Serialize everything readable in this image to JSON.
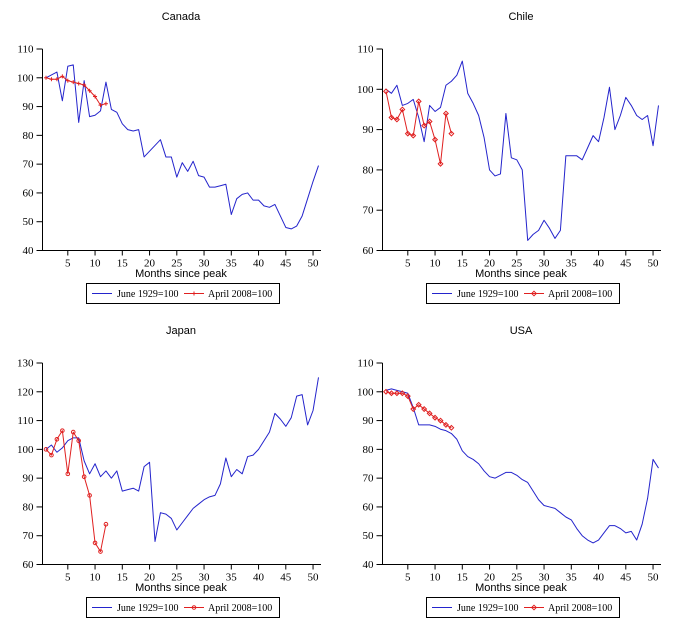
{
  "figure": {
    "background": "#ffffff",
    "blue_color": "#2424cc",
    "red_color": "#e02020",
    "axis_color": "#000000",
    "legend_border_color": "#000000"
  },
  "chart_data": [
    {
      "type": "line",
      "title": "Canada",
      "xlabel": "Months since peak",
      "ylim": [
        40,
        110
      ],
      "yticks": [
        40,
        50,
        60,
        70,
        80,
        90,
        100,
        110
      ],
      "xticks": [
        5,
        10,
        15,
        20,
        25,
        30,
        35,
        40,
        45,
        50
      ],
      "xlim": [
        1,
        51
      ],
      "grid": false,
      "legend_position": "bottom",
      "series": [
        {
          "name": "June 1929=100",
          "color": "#2424cc",
          "marker": "none",
          "x_start": 1,
          "values": [
            100,
            101,
            102,
            92,
            104,
            104.5,
            84.5,
            99,
            86.5,
            87,
            88.5,
            98.5,
            89,
            88,
            84,
            82,
            81.5,
            82,
            72.5,
            74.5,
            76.5,
            78.5,
            72.5,
            72.5,
            65.5,
            70.5,
            67.5,
            71,
            66,
            65.5,
            62,
            62,
            62.5,
            63,
            52.5,
            58,
            59.5,
            60,
            57.5,
            57.5,
            55.5,
            55,
            56,
            52,
            48,
            47.5,
            48.5,
            52,
            58,
            64,
            69.5
          ]
        },
        {
          "name": "April 2008=100",
          "color": "#e02020",
          "marker": "plus",
          "x_start": 1,
          "values": [
            100,
            99.5,
            99.5,
            100.5,
            99,
            98.5,
            98,
            97.5,
            95.5,
            93.5,
            90.5,
            91
          ]
        }
      ]
    },
    {
      "type": "line",
      "title": "Chile",
      "xlabel": "Months since peak",
      "ylim": [
        60,
        110
      ],
      "yticks": [
        60,
        70,
        80,
        90,
        100,
        110
      ],
      "xticks": [
        5,
        10,
        15,
        20,
        25,
        30,
        35,
        40,
        45,
        50
      ],
      "xlim": [
        1,
        51
      ],
      "grid": false,
      "legend_position": "bottom",
      "series": [
        {
          "name": "June 1929=100",
          "color": "#2424cc",
          "marker": "none",
          "x_start": 1,
          "values": [
            100,
            99,
            101,
            96,
            96.5,
            97.5,
            93,
            87,
            96,
            94.5,
            95.5,
            101,
            102,
            103.5,
            107,
            99,
            96.5,
            93.5,
            88,
            80,
            78.5,
            79,
            94,
            83,
            82.5,
            80,
            62.5,
            64,
            65,
            67.5,
            65.5,
            63,
            65,
            83.5,
            83.5,
            83.5,
            82.5,
            85.5,
            88.5,
            87,
            93,
            100.5,
            90,
            93.5,
            98,
            96,
            93.5,
            92.5,
            93.5,
            86,
            96
          ]
        },
        {
          "name": "April 2008=100",
          "color": "#e02020",
          "marker": "diamond",
          "x_start": 1,
          "values": [
            99.5,
            93,
            92.5,
            95,
            89,
            88.5,
            97,
            91,
            92,
            87.5,
            81.5,
            94,
            89
          ]
        }
      ]
    },
    {
      "type": "line",
      "title": "Japan",
      "xlabel": "Months since peak",
      "ylim": [
        60,
        130
      ],
      "yticks": [
        60,
        70,
        80,
        90,
        100,
        110,
        120,
        130
      ],
      "xticks": [
        5,
        10,
        15,
        20,
        25,
        30,
        35,
        40,
        45,
        50
      ],
      "xlim": [
        1,
        51
      ],
      "grid": false,
      "legend_position": "bottom",
      "series": [
        {
          "name": "June 1929=100",
          "color": "#2424cc",
          "marker": "none",
          "x_start": 1,
          "values": [
            100,
            101.5,
            99,
            100.5,
            103,
            104,
            104,
            96,
            91.5,
            95,
            90.5,
            92.5,
            90,
            92.5,
            85.5,
            86,
            86.5,
            85.5,
            94,
            95.5,
            68,
            78,
            77.5,
            76,
            72,
            74.5,
            77,
            79.5,
            81,
            82.5,
            83.5,
            84,
            88,
            97,
            90.5,
            93,
            91.5,
            97.5,
            98,
            100,
            103,
            106,
            112.5,
            110.5,
            108,
            111,
            118.5,
            119,
            108.5,
            113.5,
            125
          ]
        },
        {
          "name": "April 2008=100",
          "color": "#e02020",
          "marker": "circle",
          "x_start": 1,
          "values": [
            100,
            98,
            103.5,
            106.5,
            91.5,
            106,
            103,
            90.5,
            84,
            67.5,
            64.5,
            74
          ]
        }
      ]
    },
    {
      "type": "line",
      "title": "USA",
      "xlabel": "Months since peak",
      "ylim": [
        40,
        110
      ],
      "yticks": [
        40,
        50,
        60,
        70,
        80,
        90,
        100,
        110
      ],
      "xticks": [
        5,
        10,
        15,
        20,
        25,
        30,
        35,
        40,
        45,
        50
      ],
      "xlim": [
        1,
        51
      ],
      "grid": false,
      "legend_position": "bottom",
      "series": [
        {
          "name": "June 1929=100",
          "color": "#2424cc",
          "marker": "none",
          "x_start": 1,
          "values": [
            100.5,
            101,
            100.5,
            100,
            99.5,
            94.5,
            88.5,
            88.5,
            88.5,
            88,
            87,
            86.5,
            85.5,
            83.5,
            79.5,
            77.5,
            76.5,
            75,
            72.5,
            70.5,
            70,
            71,
            72,
            72,
            71,
            69.5,
            68.5,
            65.5,
            62.5,
            60.5,
            60,
            59.5,
            58,
            56.5,
            55.5,
            52.5,
            50,
            48.5,
            47.5,
            48.5,
            51,
            53.5,
            53.5,
            52.5,
            51,
            51.5,
            48.5,
            54,
            63,
            76.5,
            73.5
          ]
        },
        {
          "name": "April 2008=100",
          "color": "#e02020",
          "marker": "diamond",
          "x_start": 1,
          "values": [
            100,
            99.5,
            99.5,
            99.5,
            98.5,
            94,
            95.5,
            94,
            92.5,
            91,
            90,
            88.5,
            87.5
          ]
        }
      ]
    }
  ]
}
